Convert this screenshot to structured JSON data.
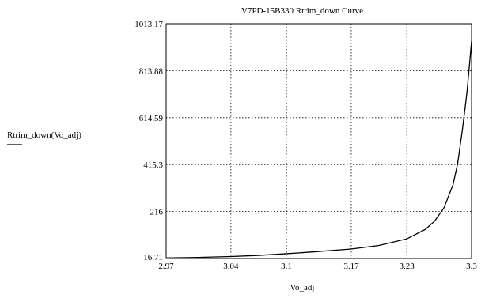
{
  "chart_data": {
    "type": "line",
    "title": "V7PD-15B330 Rtrim_down Curve",
    "xlabel": "Vo_adj",
    "ylabel": "Rtrim_down(Vo_adj)",
    "xlim": [
      2.97,
      3.3
    ],
    "ylim": [
      16.71,
      1013.17
    ],
    "x_ticks": [
      "2.97",
      "3.04",
      "3.1",
      "3.17",
      "3.23",
      "3.3"
    ],
    "x_tick_values": [
      2.97,
      3.04,
      3.1,
      3.17,
      3.23,
      3.3
    ],
    "y_ticks": [
      "16.71",
      "216",
      "415.3",
      "614.59",
      "813.88",
      "1013.17"
    ],
    "y_tick_values": [
      16.71,
      216,
      415.3,
      614.59,
      813.88,
      1013.17
    ],
    "grid": true,
    "grid_style": "dotted",
    "legend_placement": "left",
    "line_color": "#000000",
    "series": [
      {
        "name": "Rtrim_down(Vo_adj)",
        "x": [
          2.97,
          3.0,
          3.04,
          3.07,
          3.1,
          3.13,
          3.17,
          3.2,
          3.23,
          3.25,
          3.26,
          3.27,
          3.28,
          3.285,
          3.29,
          3.295,
          3.298,
          3.3
        ],
        "y": [
          19,
          21,
          25,
          30,
          37,
          45,
          57,
          72,
          100,
          140,
          175,
          230,
          330,
          420,
          560,
          720,
          850,
          940
        ]
      }
    ]
  }
}
